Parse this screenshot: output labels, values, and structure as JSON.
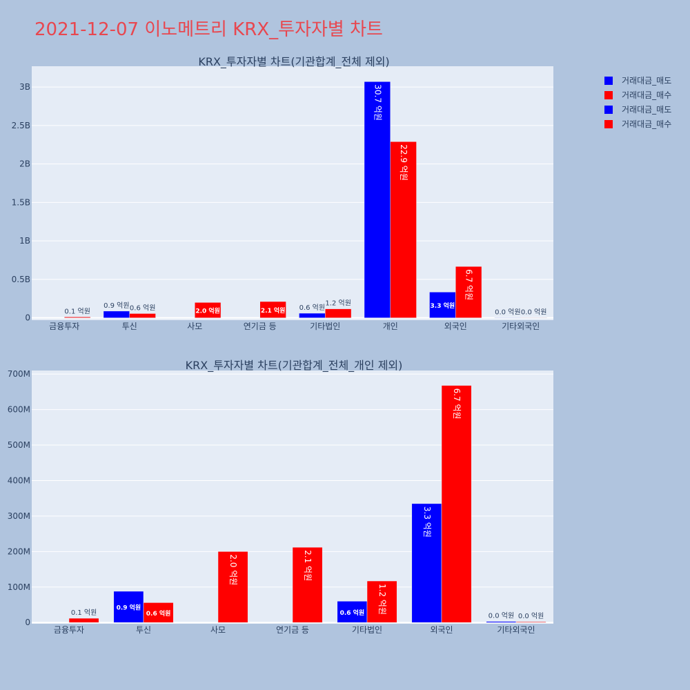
{
  "page_title": "2021-12-07 이노메트리 KRX_투자자별 차트",
  "colors": {
    "background": "#b0c4de",
    "plot_bg": "#e5ecf6",
    "grid": "#ffffff",
    "text": "#2a3f5f",
    "title": "#e8474f",
    "sell": "#0000ff",
    "buy": "#ff0000"
  },
  "legend": [
    {
      "name": "거래대금_매도",
      "color": "#0000ff"
    },
    {
      "name": "거래대금_매수",
      "color": "#ff0000"
    },
    {
      "name": "거래대금_매도",
      "color": "#0000ff"
    },
    {
      "name": "거래대금_매수",
      "color": "#ff0000"
    }
  ],
  "chart_data": [
    {
      "type": "bar",
      "title": "KRX_투자자별 차트(기관합계_전체 제외)",
      "categories": [
        "금융투자",
        "투신",
        "사모",
        "연기금 등",
        "기타법인",
        "개인",
        "외국인",
        "기타외국인"
      ],
      "ylim": [
        -30000000,
        3270000000
      ],
      "yticks": [
        0,
        500000000,
        1000000000,
        1500000000,
        2000000000,
        2500000000,
        3000000000
      ],
      "ytick_labels": [
        "0",
        "0.5B",
        "1B",
        "1.5B",
        "2B",
        "2.5B",
        "3B"
      ],
      "series": [
        {
          "name": "거래대금_매도",
          "color": "#0000ff",
          "values": [
            0,
            88000000,
            0,
            0,
            60000000,
            3070000000,
            335000000,
            3000000
          ],
          "labels": [
            "",
            "0.9 억원",
            "",
            "",
            "0.6 억원",
            "30.7 억원",
            "3.3 억원",
            "0.0 억원"
          ]
        },
        {
          "name": "거래대금_매수",
          "color": "#ff0000",
          "values": [
            12000000,
            56000000,
            200000000,
            212000000,
            117000000,
            2290000000,
            668000000,
            2000000
          ],
          "labels": [
            "0.1 억원",
            "0.6 억원",
            "2.0 억원",
            "2.1 억원",
            "1.2 억원",
            "22.9 억원",
            "6.7 억원",
            "0.0 억원"
          ]
        }
      ]
    },
    {
      "type": "bar",
      "title": "KRX_투자자별 차트(기관합계_전체_개인 제외)",
      "categories": [
        "금융투자",
        "투신",
        "사모",
        "연기금 등",
        "기타법인",
        "외국인",
        "기타외국인"
      ],
      "ylim": [
        -3500000,
        710000000
      ],
      "yticks": [
        0,
        100000000,
        200000000,
        300000000,
        400000000,
        500000000,
        600000000,
        700000000
      ],
      "ytick_labels": [
        "0",
        "100M",
        "200M",
        "300M",
        "400M",
        "500M",
        "600M",
        "700M"
      ],
      "series": [
        {
          "name": "거래대금_매도",
          "color": "#0000ff",
          "values": [
            0,
            88000000,
            0,
            0,
            60000000,
            335000000,
            3000000
          ],
          "labels": [
            "",
            "0.9 억원",
            "",
            "",
            "0.6 억원",
            "3.3 억원",
            "0.0 억원"
          ]
        },
        {
          "name": "거래대금_매수",
          "color": "#ff0000",
          "values": [
            12000000,
            56000000,
            200000000,
            212000000,
            117000000,
            668000000,
            2000000
          ],
          "labels": [
            "0.1 억원",
            "0.6 억원",
            "2.0 억원",
            "2.1 억원",
            "1.2 억원",
            "6.7 억원",
            "0.0 억원"
          ]
        }
      ]
    }
  ]
}
